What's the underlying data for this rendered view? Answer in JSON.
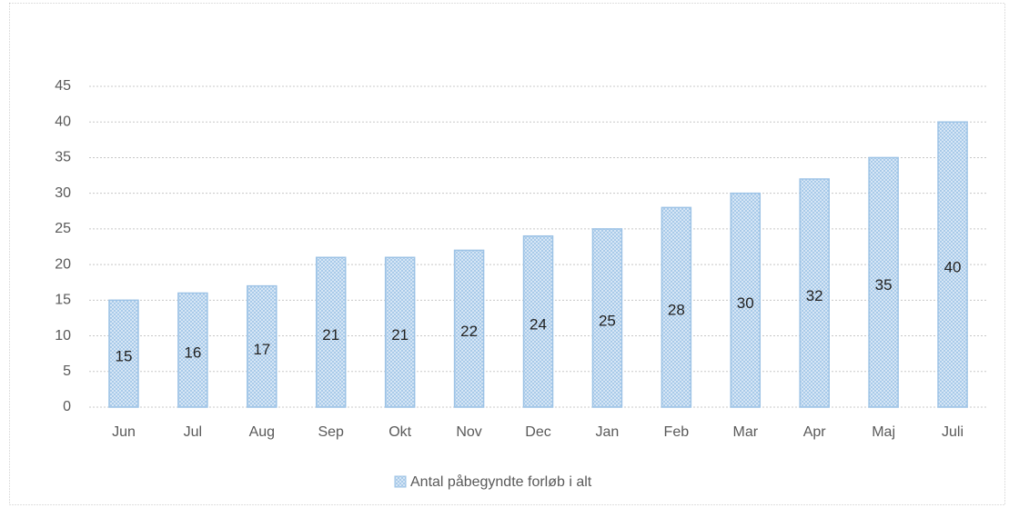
{
  "chart_data": {
    "type": "bar",
    "categories": [
      "Jun",
      "Jul",
      "Aug",
      "Sep",
      "Okt",
      "Nov",
      "Dec",
      "Jan",
      "Feb",
      "Mar",
      "Apr",
      "Maj",
      "Juli"
    ],
    "series": [
      {
        "name": "Antal påbegyndte forløb i alt",
        "color": "#9dc3e6",
        "values": [
          15,
          16,
          17,
          21,
          21,
          22,
          24,
          25,
          28,
          30,
          32,
          35,
          40
        ]
      }
    ],
    "ylim": [
      0,
      45
    ],
    "yticks": [
      0,
      5,
      10,
      15,
      20,
      25,
      30,
      35,
      40,
      45
    ],
    "grid": true,
    "legend": "bottom",
    "data_labels": true
  }
}
